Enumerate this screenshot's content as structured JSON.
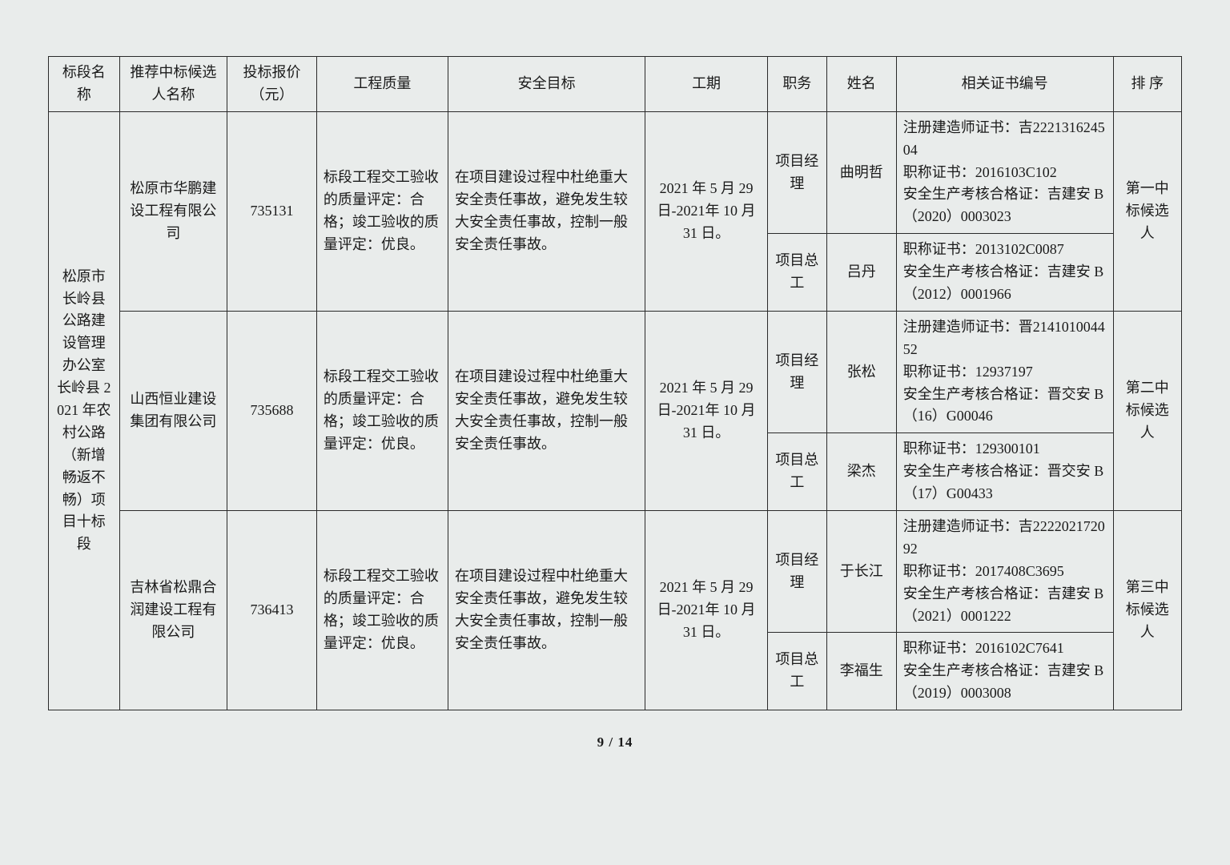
{
  "headers": {
    "section": "标段名称",
    "candidate": "推荐中标候选人名称",
    "price": "投标报价（元）",
    "quality": "工程质量",
    "safety": "安全目标",
    "period": "工期",
    "role": "职务",
    "name": "姓名",
    "cert": "相关证书编号",
    "rank": "排 序"
  },
  "section_name": "松原市长岭县公路建设管理办公室长岭县 2021 年农村公路（新增畅返不畅）项目十标段",
  "candidates": [
    {
      "company": "松原市华鹏建设工程有限公司",
      "price": "735131",
      "quality": "标段工程交工验收的质量评定：合格；竣工验收的质量评定：优良。",
      "safety": "在项目建设过程中杜绝重大安全责任事故，避免发生较大安全责任事故，控制一般安全责任事故。",
      "period": "2021 年 5 月 29 日-2021年 10 月 31 日。",
      "rank": "第一中标候选人",
      "persons": [
        {
          "role": "项目经理",
          "name": "曲明哲",
          "cert": "注册建造师证书：吉222131624504\n职称证书：2016103C102\n安全生产考核合格证：吉建安 B（2020）0003023"
        },
        {
          "role": "项目总工",
          "name": "吕丹",
          "cert": "职称证书：2013102C0087\n安全生产考核合格证：吉建安 B（2012）0001966"
        }
      ]
    },
    {
      "company": "山西恒业建设集团有限公司",
      "price": "735688",
      "quality": "标段工程交工验收的质量评定：合格；竣工验收的质量评定：优良。",
      "safety": "在项目建设过程中杜绝重大安全责任事故，避免发生较大安全责任事故，控制一般安全责任事故。",
      "period": "2021 年 5 月 29 日-2021年 10 月 31 日。",
      "rank": "第二中标候选人",
      "persons": [
        {
          "role": "项目经理",
          "name": "张松",
          "cert": "注册建造师证书：晋214101004452\n职称证书：12937197\n安全生产考核合格证：晋交安 B（16）G00046"
        },
        {
          "role": "项目总工",
          "name": "梁杰",
          "cert": "职称证书：129300101\n安全生产考核合格证：晋交安 B（17）G00433"
        }
      ]
    },
    {
      "company": "吉林省松鼎合润建设工程有限公司",
      "price": "736413",
      "quality": "标段工程交工验收的质量评定：合格；竣工验收的质量评定：优良。",
      "safety": "在项目建设过程中杜绝重大安全责任事故，避免发生较大安全责任事故，控制一般安全责任事故。",
      "period": "2021 年 5 月 29 日-2021年 10 月 31 日。",
      "rank": "第三中标候选人",
      "persons": [
        {
          "role": "项目经理",
          "name": "于长江",
          "cert": "注册建造师证书：吉222202172092\n职称证书：2017408C3695\n安全生产考核合格证：吉建安 B（2021）0001222"
        },
        {
          "role": "项目总工",
          "name": "李福生",
          "cert": "职称证书：2016102C7641\n安全生产考核合格证：吉建安 B（2019）0003008"
        }
      ]
    }
  ],
  "pager": "9 / 14"
}
